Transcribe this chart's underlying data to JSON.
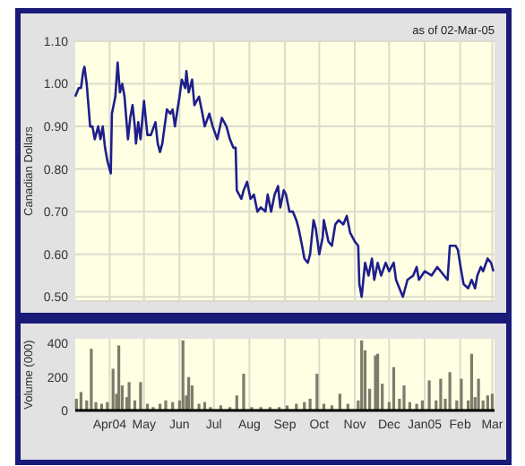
{
  "chart_data": [
    {
      "type": "line",
      "subtitle": "as of 02-Mar-05",
      "ylabel": "Canadian Dollars",
      "xlim": [
        "2004-03-02",
        "2005-03-03"
      ],
      "ylim": [
        0.49,
        1.1
      ],
      "xticks": [
        {
          "value": "2004-04-01",
          "label": null
        },
        {
          "value": "2004-05-01",
          "label": null
        },
        {
          "value": "2004-06-01",
          "label": null
        },
        {
          "value": "2004-07-01",
          "label": null
        },
        {
          "value": "2004-08-01",
          "label": null
        },
        {
          "value": "2004-09-01",
          "label": null
        },
        {
          "value": "2004-10-01",
          "label": null
        },
        {
          "value": "2004-11-01",
          "label": null
        },
        {
          "value": "2004-12-01",
          "label": null
        },
        {
          "value": "2005-01-01",
          "label": null
        },
        {
          "value": "2005-02-01",
          "label": null
        },
        {
          "value": "2005-03-01",
          "label": null
        }
      ],
      "yticks": [
        {
          "value": 0.5,
          "label": "0.50"
        },
        {
          "value": 0.6,
          "label": "0.60"
        },
        {
          "value": 0.7,
          "label": "0.70"
        },
        {
          "value": 0.8,
          "label": "0.80"
        },
        {
          "value": 0.9,
          "label": "0.90"
        },
        {
          "value": 1.0,
          "label": "1.00"
        },
        {
          "value": 1.1,
          "label": "1.10"
        }
      ],
      "tick_labels": "y",
      "grid": true,
      "x": [
        "2004-03-02",
        "2004-03-05",
        "2004-03-07",
        "2004-03-09",
        "2004-03-10",
        "2004-03-12",
        "2004-03-15",
        "2004-03-17",
        "2004-03-19",
        "2004-03-22",
        "2004-03-24",
        "2004-03-26",
        "2004-03-28",
        "2004-03-30",
        "2004-04-01",
        "2004-04-02",
        "2004-04-03",
        "2004-04-06",
        "2004-04-08",
        "2004-04-10",
        "2004-04-12",
        "2004-04-14",
        "2004-04-17",
        "2004-04-19",
        "2004-04-21",
        "2004-04-23",
        "2004-04-24",
        "2004-04-26",
        "2004-04-28",
        "2004-05-01",
        "2004-05-04",
        "2004-05-07",
        "2004-05-11",
        "2004-05-13",
        "2004-05-15",
        "2004-05-17",
        "2004-05-21",
        "2004-05-24",
        "2004-05-26",
        "2004-05-28",
        "2004-06-01",
        "2004-06-03",
        "2004-06-06",
        "2004-06-07",
        "2004-06-09",
        "2004-06-12",
        "2004-06-14",
        "2004-06-18",
        "2004-06-21",
        "2004-06-23",
        "2004-06-27",
        "2004-06-30",
        "2004-07-04",
        "2004-07-08",
        "2004-07-12",
        "2004-07-15",
        "2004-07-18",
        "2004-07-20",
        "2004-07-21",
        "2004-07-25",
        "2004-07-27",
        "2004-07-30",
        "2004-08-02",
        "2004-08-05",
        "2004-08-08",
        "2004-08-11",
        "2004-08-15",
        "2004-08-17",
        "2004-08-20",
        "2004-08-23",
        "2004-08-26",
        "2004-08-28",
        "2004-08-31",
        "2004-09-02",
        "2004-09-05",
        "2004-09-08",
        "2004-09-11",
        "2004-09-13",
        "2004-09-16",
        "2004-09-18",
        "2004-09-21",
        "2004-09-23",
        "2004-09-26",
        "2004-09-28",
        "2004-10-01",
        "2004-10-04",
        "2004-10-05",
        "2004-10-09",
        "2004-10-12",
        "2004-10-15",
        "2004-10-18",
        "2004-10-22",
        "2004-10-25",
        "2004-10-28",
        "2004-11-01",
        "2004-11-04",
        "2004-11-05",
        "2004-11-07",
        "2004-11-10",
        "2004-11-13",
        "2004-11-16",
        "2004-11-18",
        "2004-11-21",
        "2004-11-24",
        "2004-11-28",
        "2004-12-01",
        "2004-12-05",
        "2004-12-07",
        "2004-12-10",
        "2004-12-13",
        "2004-12-17",
        "2004-12-22",
        "2004-12-25",
        "2004-12-27",
        "2005-01-01",
        "2005-01-07",
        "2005-01-12",
        "2005-01-18",
        "2005-01-21",
        "2005-01-23",
        "2005-01-28",
        "2005-01-30",
        "2005-02-02",
        "2005-02-04",
        "2005-02-08",
        "2005-02-11",
        "2005-02-14",
        "2005-02-16",
        "2005-02-19",
        "2005-02-21",
        "2005-02-25",
        "2005-02-28",
        "2005-03-02"
      ],
      "series": [
        {
          "color": "#1e1e8c",
          "values": [
            0.97,
            0.99,
            0.99,
            1.03,
            1.04,
            1.0,
            0.9,
            0.9,
            0.87,
            0.9,
            0.87,
            0.9,
            0.85,
            0.82,
            0.8,
            0.79,
            0.93,
            0.97,
            1.05,
            0.98,
            1.0,
            0.97,
            0.87,
            0.92,
            0.95,
            0.9,
            0.86,
            0.91,
            0.87,
            0.96,
            0.88,
            0.88,
            0.91,
            0.86,
            0.84,
            0.86,
            0.94,
            0.93,
            0.94,
            0.9,
            0.97,
            1.01,
            0.99,
            1.03,
            0.98,
            1.01,
            0.95,
            0.97,
            0.93,
            0.9,
            0.93,
            0.9,
            0.87,
            0.92,
            0.9,
            0.87,
            0.85,
            0.85,
            0.75,
            0.73,
            0.75,
            0.77,
            0.73,
            0.74,
            0.7,
            0.71,
            0.7,
            0.74,
            0.7,
            0.74,
            0.76,
            0.71,
            0.75,
            0.74,
            0.7,
            0.7,
            0.68,
            0.66,
            0.62,
            0.59,
            0.58,
            0.6,
            0.68,
            0.66,
            0.6,
            0.64,
            0.68,
            0.63,
            0.62,
            0.67,
            0.68,
            0.67,
            0.69,
            0.65,
            0.63,
            0.62,
            0.53,
            0.5,
            0.58,
            0.55,
            0.59,
            0.54,
            0.58,
            0.55,
            0.58,
            0.56,
            0.58,
            0.54,
            0.52,
            0.5,
            0.54,
            0.55,
            0.57,
            0.54,
            0.56,
            0.55,
            0.57,
            0.55,
            0.54,
            0.62,
            0.62,
            0.61,
            0.56,
            0.53,
            0.52,
            0.54,
            0.52,
            0.55,
            0.57,
            0.56,
            0.59,
            0.58,
            0.56
          ]
        }
      ]
    },
    {
      "type": "bar",
      "ylabel": "Volume (000)",
      "xlim": [
        "2004-03-02",
        "2005-03-03"
      ],
      "ylim": [
        0,
        430
      ],
      "xticks": [
        {
          "value": "2004-04-01",
          "label": "Apr04"
        },
        {
          "value": "2004-05-01",
          "label": "May"
        },
        {
          "value": "2004-06-01",
          "label": "Jun"
        },
        {
          "value": "2004-07-01",
          "label": "Jul"
        },
        {
          "value": "2004-08-01",
          "label": "Aug"
        },
        {
          "value": "2004-09-01",
          "label": "Sep"
        },
        {
          "value": "2004-10-01",
          "label": "Oct"
        },
        {
          "value": "2004-11-01",
          "label": "Nov"
        },
        {
          "value": "2004-12-01",
          "label": "Dec"
        },
        {
          "value": "2005-01-01",
          "label": "Jan05"
        },
        {
          "value": "2005-02-01",
          "label": "Feb"
        },
        {
          "value": "2005-03-01",
          "label": "Mar"
        }
      ],
      "yticks": [
        0,
        200,
        400
      ],
      "grid": "x",
      "x": [
        "2004-03-03",
        "2004-03-07",
        "2004-03-12",
        "2004-03-16",
        "2004-03-20",
        "2004-03-25",
        "2004-03-30",
        "2004-04-04",
        "2004-04-07",
        "2004-04-09",
        "2004-04-12",
        "2004-04-16",
        "2004-04-18",
        "2004-04-23",
        "2004-04-28",
        "2004-05-04",
        "2004-05-09",
        "2004-05-15",
        "2004-05-20",
        "2004-05-26",
        "2004-06-01",
        "2004-06-04",
        "2004-06-07",
        "2004-06-09",
        "2004-06-12",
        "2004-06-18",
        "2004-06-23",
        "2004-06-28",
        "2004-07-07",
        "2004-07-15",
        "2004-07-21",
        "2004-07-27",
        "2004-08-03",
        "2004-08-11",
        "2004-08-19",
        "2004-08-27",
        "2004-09-03",
        "2004-09-11",
        "2004-09-18",
        "2004-09-23",
        "2004-09-29",
        "2004-10-05",
        "2004-10-12",
        "2004-10-19",
        "2004-10-26",
        "2004-11-04",
        "2004-11-07",
        "2004-11-10",
        "2004-11-14",
        "2004-11-19",
        "2004-11-21",
        "2004-11-25",
        "2004-12-01",
        "2004-12-05",
        "2004-12-10",
        "2004-12-14",
        "2004-12-19",
        "2004-12-25",
        "2004-12-30",
        "2005-01-05",
        "2005-01-11",
        "2005-01-15",
        "2005-01-19",
        "2005-01-23",
        "2005-01-29",
        "2005-02-02",
        "2005-02-08",
        "2005-02-11",
        "2005-02-14",
        "2005-02-17",
        "2005-02-21",
        "2005-02-25",
        "2005-03-01"
      ],
      "series": [
        {
          "color": "#7c7c6c",
          "values": [
            70,
            110,
            60,
            370,
            50,
            40,
            50,
            250,
            100,
            390,
            150,
            80,
            170,
            60,
            170,
            40,
            20,
            40,
            60,
            50,
            60,
            420,
            90,
            200,
            150,
            40,
            50,
            20,
            30,
            20,
            90,
            220,
            20,
            20,
            20,
            20,
            30,
            40,
            50,
            70,
            220,
            40,
            30,
            100,
            40,
            60,
            420,
            360,
            130,
            330,
            340,
            160,
            50,
            260,
            70,
            150,
            50,
            40,
            60,
            180,
            60,
            190,
            70,
            230,
            60,
            190,
            60,
            340,
            80,
            190,
            60,
            90,
            100
          ]
        }
      ]
    }
  ]
}
